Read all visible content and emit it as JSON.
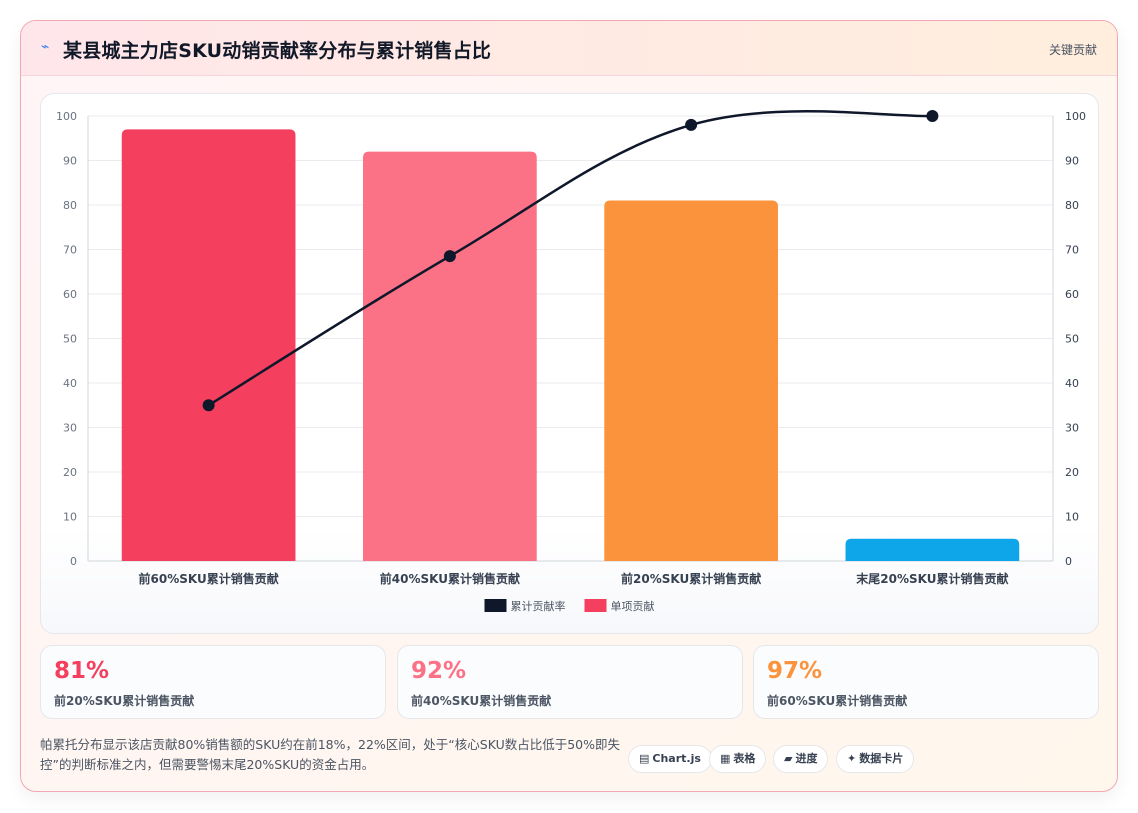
{
  "header": {
    "icon": "wave-icon",
    "title": "某县城主力店SKU动销贡献率分布与累计销售占比",
    "tag": "关键贡献"
  },
  "chart_data": {
    "type": "bar",
    "categories": [
      "前60%SKU累计销售贡献",
      "前40%SKU累计销售贡献",
      "前20%SKU累计销售贡献",
      "末尾20%SKU累计销售贡献"
    ],
    "series": [
      {
        "name": "单项贡献",
        "type": "bar",
        "values": [
          97,
          92,
          81,
          5
        ],
        "colors": [
          "#f43f5e",
          "#fb7185",
          "#fb923c",
          "#0ea5e9"
        ]
      },
      {
        "name": "累计贡献率",
        "type": "line",
        "values": [
          35,
          68.5,
          98,
          100
        ],
        "color": "#0f172a"
      }
    ],
    "yleft": {
      "min": 0,
      "max": 100,
      "ticks": [
        0,
        10,
        20,
        30,
        40,
        50,
        60,
        70,
        80,
        90,
        100
      ]
    },
    "yright": {
      "min": 0,
      "max": 100,
      "ticks": [
        0,
        10,
        20,
        30,
        40,
        50,
        60,
        70,
        80,
        90,
        100
      ]
    },
    "legend_position": "bottom",
    "legend": [
      {
        "label": "累计贡献率",
        "color": "#0f172a"
      },
      {
        "label": "单项贡献",
        "color": "#f43f5e"
      }
    ],
    "grid": true
  },
  "kpis": [
    {
      "value": "81%",
      "label": "前20%SKU累计销售贡献",
      "color": "#f43f5e"
    },
    {
      "value": "92%",
      "label": "前40%SKU累计销售贡献",
      "color": "#fb7185"
    },
    {
      "value": "97%",
      "label": "前60%SKU累计销售贡献",
      "color": "#fb923c"
    }
  ],
  "summary": "帕累托分布显示该店贡献80%销售额的SKU约在前18%，22%区间，处于“核心SKU数占比低于50%即失控”的判断标准之内，但需要警惕末尾20%SKU的资金占用。",
  "chips": [
    {
      "icon": "▤",
      "label": "Chart.js"
    },
    {
      "icon": "▦",
      "label": "表格"
    },
    {
      "icon": "▰",
      "label": "进度"
    },
    {
      "icon": "✦",
      "label": "数据卡片"
    }
  ]
}
